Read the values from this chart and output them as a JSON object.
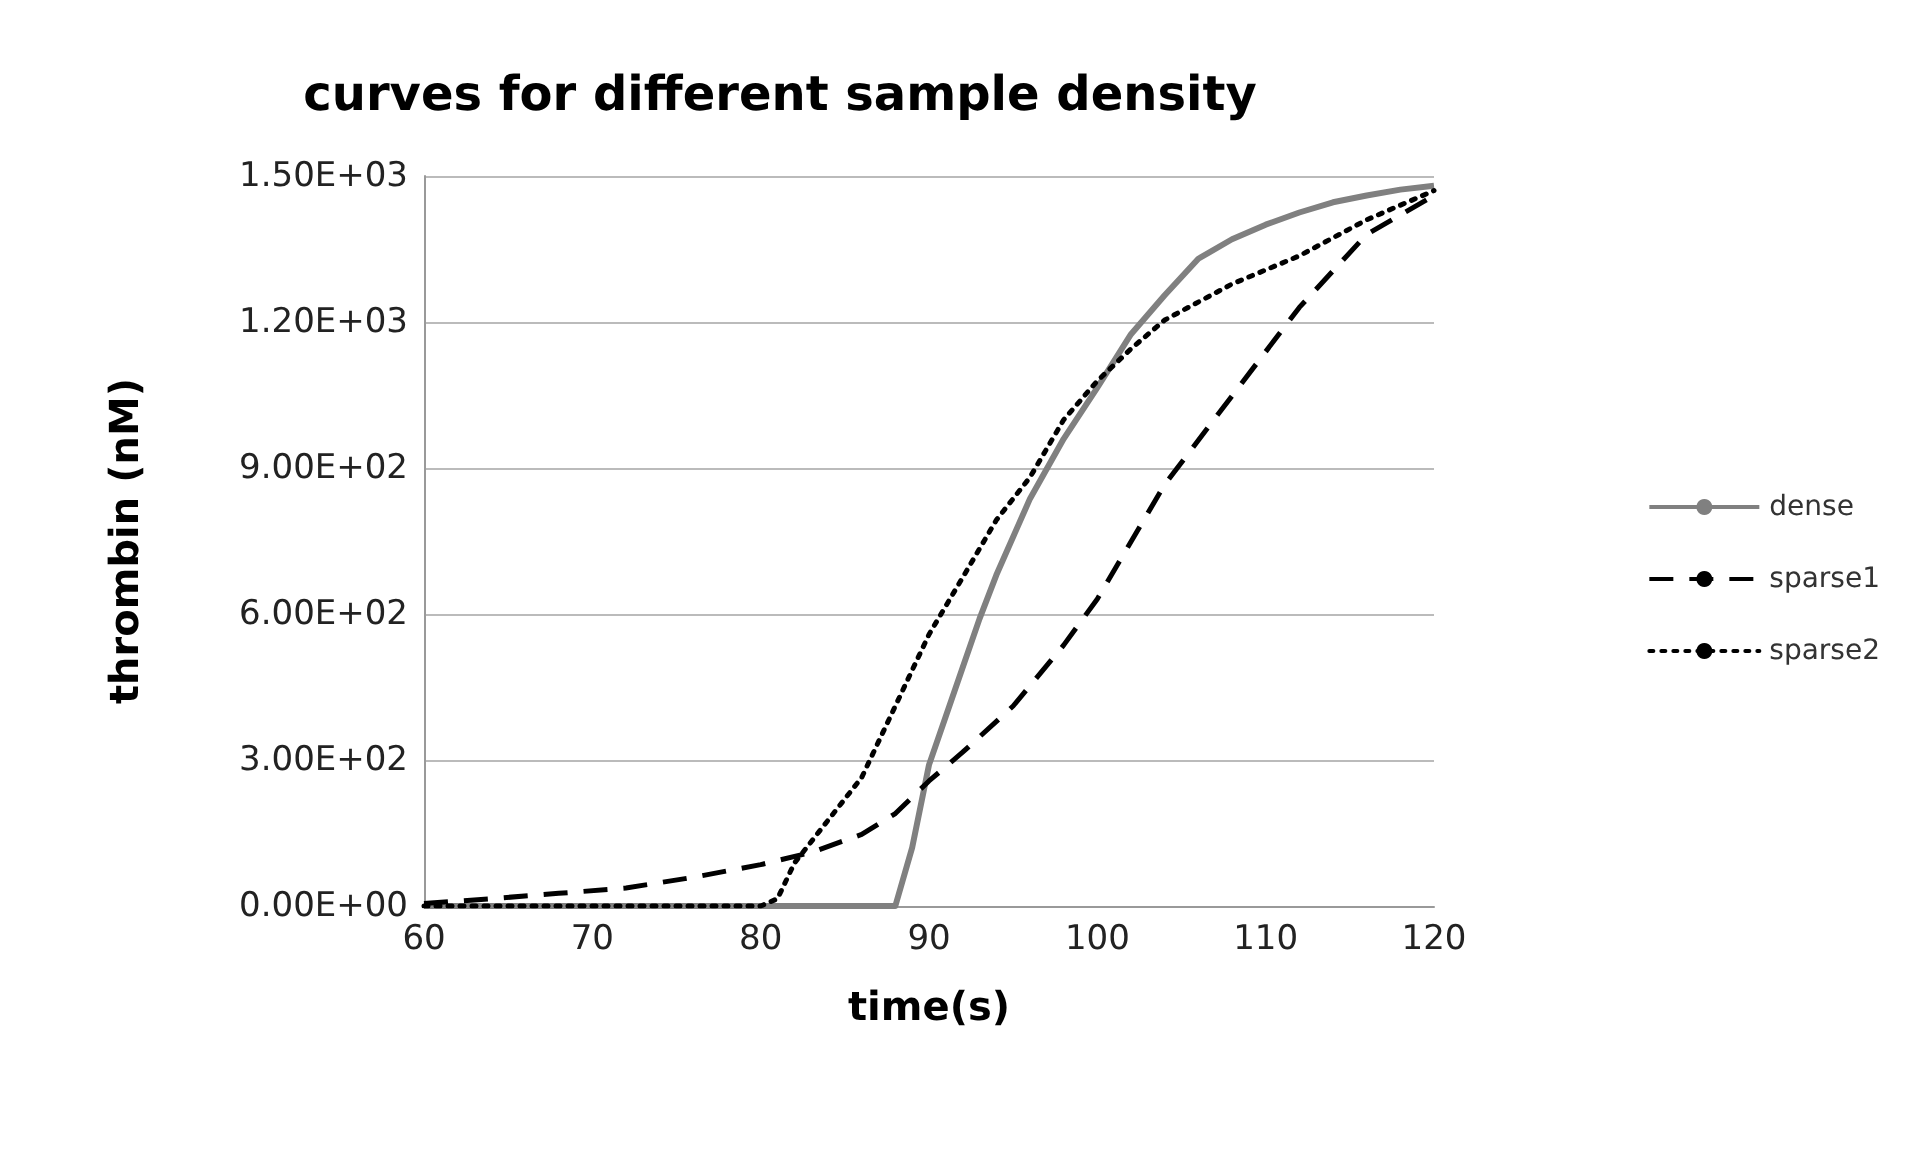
{
  "chart_data": {
    "type": "line",
    "title": "curves for different sample density",
    "xlabel": "time(s)",
    "ylabel": "thrombin (nM)",
    "xlim": [
      60,
      120
    ],
    "xticks": [
      60,
      70,
      80,
      90,
      100,
      110,
      120
    ],
    "ylim": [
      0,
      1500
    ],
    "yticks": [
      {
        "value": 0,
        "label": "0.00E+00"
      },
      {
        "value": 300,
        "label": "3.00E+02"
      },
      {
        "value": 600,
        "label": "6.00E+02"
      },
      {
        "value": 900,
        "label": "9.00E+02"
      },
      {
        "value": 1200,
        "label": "1.20E+03"
      },
      {
        "value": 1500,
        "label": "1.50E+03"
      }
    ],
    "grid": "y",
    "legend": "right",
    "marker": "none",
    "series": [
      {
        "name": "dense",
        "color": "#808080",
        "line_style": "solid",
        "x": [
          60,
          87,
          88,
          89,
          90,
          91,
          92,
          93,
          94,
          96,
          98,
          100,
          102,
          104,
          106,
          108,
          110,
          112,
          114,
          116,
          118,
          120
        ],
        "values": [
          0,
          0,
          0,
          120,
          290,
          390,
          490,
          590,
          680,
          837,
          960,
          1065,
          1175,
          1255,
          1330,
          1370,
          1400,
          1425,
          1446,
          1460,
          1472,
          1480
        ]
      },
      {
        "name": "sparse1",
        "color": "#000000",
        "line_style": "dashed",
        "x": [
          60,
          64,
          68,
          72,
          76,
          80,
          83,
          86,
          88,
          90,
          92,
          95,
          98,
          100,
          104,
          108,
          112,
          116,
          120
        ],
        "values": [
          5,
          15,
          26,
          37,
          59,
          85,
          110,
          147,
          190,
          257,
          316,
          411,
          536,
          631,
          866,
          1048,
          1230,
          1380,
          1460
        ]
      },
      {
        "name": "sparse2",
        "color": "#000000",
        "line_style": "dotted",
        "x": [
          60,
          80,
          81,
          82,
          84,
          86,
          88,
          90,
          92,
          94,
          96,
          98,
          100,
          102,
          104,
          108,
          112,
          116,
          120
        ],
        "values": [
          0,
          0,
          15,
          88,
          176,
          264,
          411,
          558,
          675,
          793,
          881,
          999,
          1079,
          1145,
          1204,
          1278,
          1336,
          1410,
          1470
        ]
      }
    ]
  }
}
